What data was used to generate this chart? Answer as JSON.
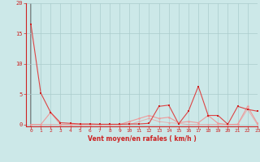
{
  "background_color": "#cce8e8",
  "grid_color": "#aacccc",
  "line_color_dark": "#dd4444",
  "line_color_light": "#ee9999",
  "marker_color_dark": "#cc2222",
  "marker_color_light": "#ee9999",
  "xlabel": "Vent moyen/en rafales ( km/h )",
  "xlabel_color": "#cc2222",
  "tick_color": "#cc2222",
  "spine_color": "#cc2222",
  "ylim": [
    -0.3,
    20
  ],
  "xlim": [
    -0.5,
    23
  ],
  "yticks": [
    0,
    5,
    10,
    15,
    20
  ],
  "xticks": [
    0,
    1,
    2,
    3,
    4,
    5,
    6,
    7,
    8,
    9,
    10,
    11,
    12,
    13,
    14,
    15,
    16,
    17,
    18,
    19,
    20,
    21,
    22,
    23
  ],
  "series1_x": [
    0,
    1,
    2,
    3,
    4,
    5,
    6,
    7,
    8,
    9,
    10,
    11,
    12,
    13,
    14,
    15,
    16,
    17,
    18,
    19,
    20,
    21,
    22,
    23
  ],
  "series1_y": [
    16.5,
    5.2,
    2.0,
    0.3,
    0.2,
    0.1,
    0.1,
    0.05,
    0.05,
    0.05,
    0.1,
    0.1,
    0.2,
    3.0,
    3.2,
    0.1,
    2.2,
    6.3,
    1.5,
    1.5,
    0.05,
    3.0,
    2.5,
    2.2
  ],
  "series2_x": [
    0,
    1,
    2,
    3,
    4,
    5,
    6,
    7,
    8,
    9,
    10,
    11,
    12,
    13,
    14,
    15,
    16,
    17,
    18,
    19,
    20,
    21,
    22,
    23
  ],
  "series2_y": [
    0.0,
    0.0,
    2.0,
    0.0,
    0.0,
    0.0,
    0.0,
    0.0,
    0.0,
    0.0,
    0.5,
    1.0,
    1.5,
    1.0,
    1.2,
    0.3,
    0.5,
    0.3,
    1.5,
    0.2,
    0.0,
    0.05,
    3.0,
    0.2
  ],
  "series3_x": [
    0,
    1,
    2,
    3,
    4,
    5,
    6,
    7,
    8,
    9,
    10,
    11,
    12,
    13,
    14,
    15,
    16,
    17,
    18,
    19,
    20,
    21,
    22,
    23
  ],
  "series3_y": [
    0.0,
    0.0,
    0.0,
    0.0,
    0.0,
    0.0,
    0.0,
    0.0,
    0.0,
    0.0,
    0.0,
    0.5,
    1.0,
    0.5,
    0.3,
    0.2,
    0.0,
    0.0,
    0.0,
    0.0,
    0.0,
    0.0,
    2.5,
    0.0
  ],
  "vline_color": "#777777"
}
